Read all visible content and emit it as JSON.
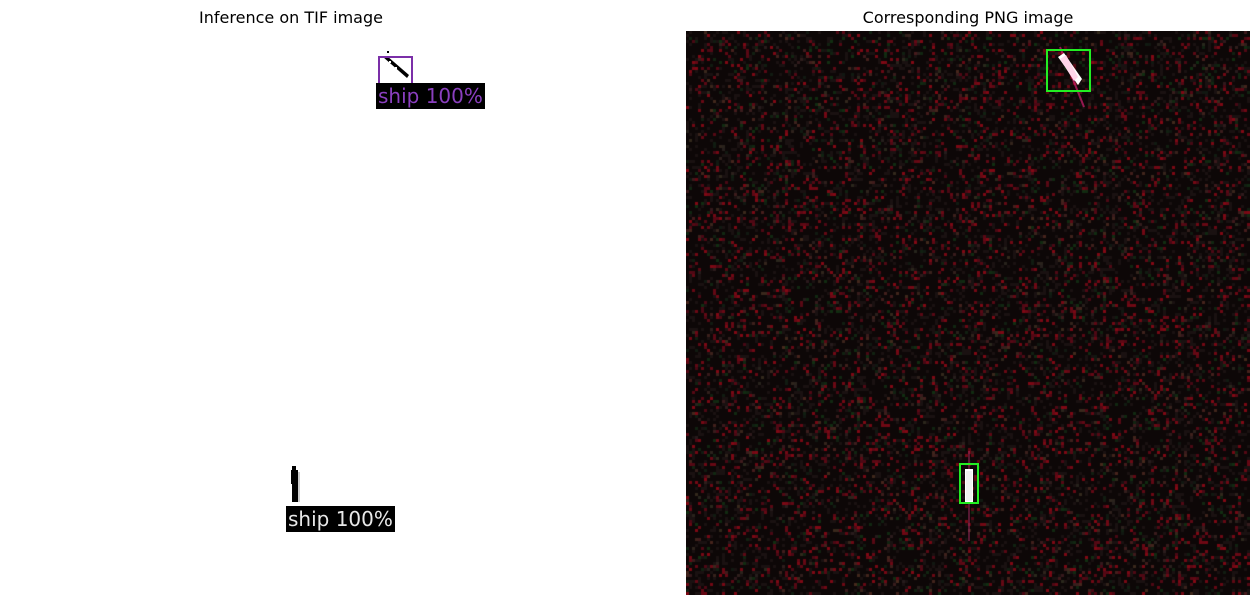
{
  "figure": {
    "left_title": "Inference on TIF image",
    "right_title": "Corresponding PNG image"
  },
  "tif_panel": {
    "detections": [
      {
        "label": "ship 100%",
        "box_color": "#7b2fa8",
        "text_color": "#8a3fbf"
      },
      {
        "label": "ship 100%",
        "box_color": "#d8d8d8",
        "text_color": "#e8e8e8"
      }
    ]
  },
  "png_panel": {
    "background_color": "#0d0707",
    "box_color": "#22ee22",
    "detection_count": 2
  }
}
